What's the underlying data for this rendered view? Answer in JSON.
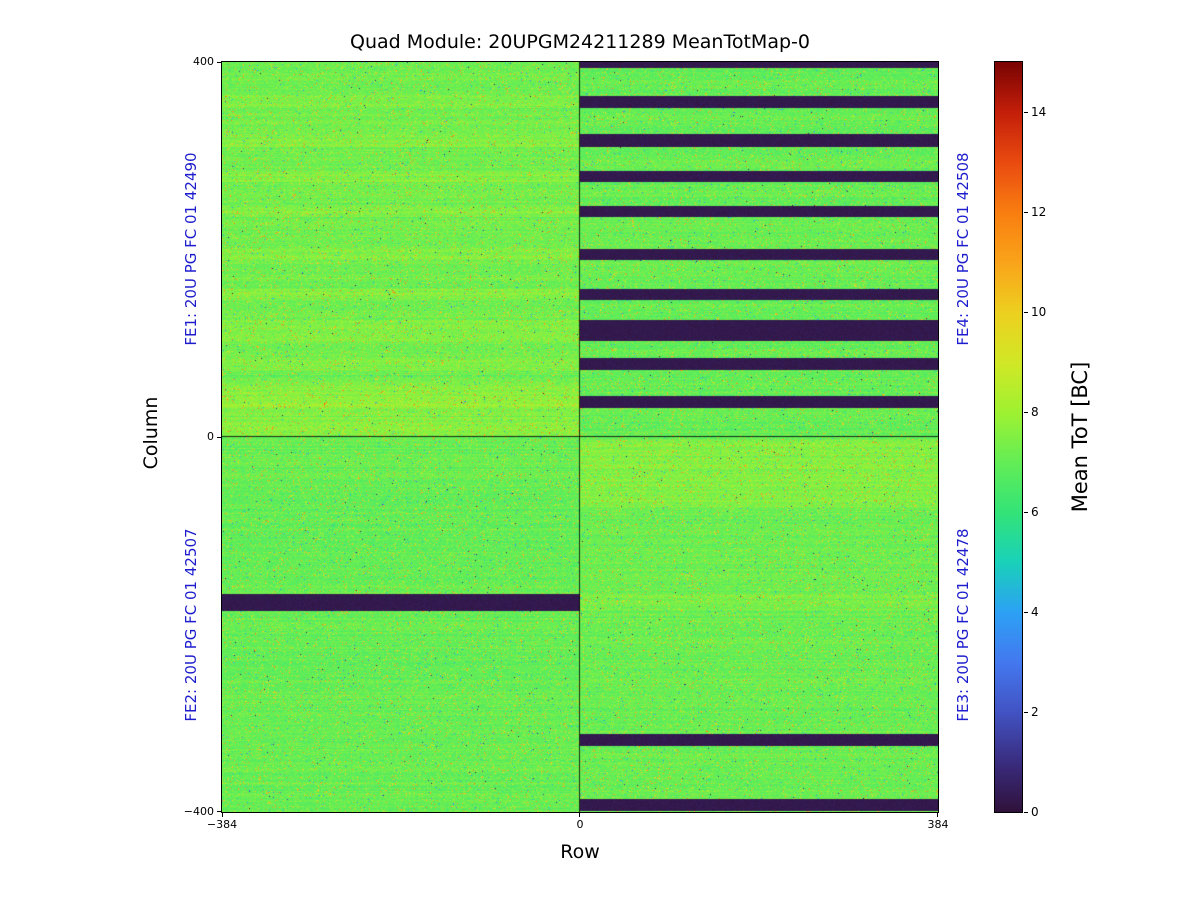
{
  "title": "Quad Module: 20UPGM24211289 MeanTotMap-0",
  "axes": {
    "xlabel": "Row",
    "ylabel": "Column",
    "x_ticks": [
      "−384",
      "0",
      "384"
    ],
    "y_ticks": [
      "400",
      "0",
      "−400"
    ]
  },
  "fe_labels": {
    "fe1": "FE1: 20U PG FC 01 42490",
    "fe2": "FE2: 20U PG FC 01 42507",
    "fe3": "FE3: 20U PG FC 01 42478",
    "fe4": "FE4: 20U PG FC 01 42508",
    "color": "#1d1dcd"
  },
  "colorbar": {
    "label": "Mean ToT [BC]",
    "ticks": [
      "14",
      "12",
      "10",
      "8",
      "6",
      "4",
      "2",
      "0"
    ]
  },
  "chart_data": {
    "type": "heatmap",
    "title": "Quad Module: 20UPGM24211289 MeanTotMap-0",
    "xlabel": "Row",
    "ylabel": "Column",
    "x_range": [
      -384,
      384
    ],
    "y_range": [
      -400,
      400
    ],
    "x_tick_values": [
      -384,
      0,
      384
    ],
    "y_tick_values": [
      400,
      0,
      -400
    ],
    "value_label": "Mean ToT [BC]",
    "value_range": [
      0,
      15
    ],
    "colorbar_tick_values": [
      0,
      2,
      4,
      6,
      8,
      10,
      12,
      14
    ],
    "colormap": "turbo",
    "colormap_anchors": [
      "#30123b",
      "#3a2d80",
      "#4254c4",
      "#4479f0",
      "#2da2f5",
      "#1ad2ba",
      "#34e478",
      "#64ee56",
      "#a0f232",
      "#d2e826",
      "#eed020",
      "#faa41a",
      "#f97e10",
      "#ea4b10",
      "#c41f0a",
      "#7a0403"
    ],
    "base_value": 7.0,
    "noise_sigma": 0.25,
    "quadrants": [
      {
        "name": "FE1",
        "label": "FE1: 20U PG FC 01 42490",
        "position": "top-left"
      },
      {
        "name": "FE2",
        "label": "FE2: 20U PG FC 01 42507",
        "position": "bottom-left"
      },
      {
        "name": "FE3",
        "label": "FE3: 20U PG FC 01 42478",
        "position": "bottom-right"
      },
      {
        "name": "FE4",
        "label": "FE4: 20U PG FC 01 42508",
        "position": "top-right"
      }
    ],
    "dead_stripes": [
      {
        "x_range": [
          0,
          384
        ],
        "col_range": [
          394,
          400
        ]
      },
      {
        "x_range": [
          0,
          384
        ],
        "col_range": [
          351,
          364
        ]
      },
      {
        "x_range": [
          0,
          384
        ],
        "col_range": [
          309,
          323
        ]
      },
      {
        "x_range": [
          0,
          384
        ],
        "col_range": [
          272,
          284
        ]
      },
      {
        "x_range": [
          0,
          384
        ],
        "col_range": [
          235,
          246
        ]
      },
      {
        "x_range": [
          0,
          384
        ],
        "col_range": [
          189,
          200
        ]
      },
      {
        "x_range": [
          0,
          384
        ],
        "col_range": [
          146,
          158
        ]
      },
      {
        "x_range": [
          0,
          384
        ],
        "col_range": [
          102,
          125
        ]
      },
      {
        "x_range": [
          0,
          384
        ],
        "col_range": [
          71,
          84
        ]
      },
      {
        "x_range": [
          0,
          384
        ],
        "col_range": [
          31,
          44
        ]
      },
      {
        "x_range": [
          -384,
          0
        ],
        "col_range": [
          -186,
          -167
        ]
      },
      {
        "x_range": [
          0,
          384
        ],
        "col_range": [
          -330,
          -317
        ]
      },
      {
        "x_range": [
          0,
          384
        ],
        "col_range": [
          -399,
          -386
        ]
      }
    ],
    "tint_bands": [
      {
        "x_range": [
          -384,
          0
        ],
        "col_range": [
          0,
          400
        ],
        "delta": 0.18
      },
      {
        "x_range": [
          -384,
          0
        ],
        "col_range": [
          0,
          58
        ],
        "delta": 0.35
      },
      {
        "x_range": [
          0,
          384
        ],
        "col_range": [
          -75,
          -2
        ],
        "delta": 0.42
      },
      {
        "x_range": [
          0,
          384
        ],
        "col_range": [
          -400,
          0
        ],
        "delta": 0.08
      },
      {
        "x_range": [
          0,
          384
        ],
        "col_range": [
          -186,
          -167
        ],
        "delta": 0.22
      },
      {
        "x_range": [
          -384,
          0
        ],
        "col_range": [
          351,
          364
        ],
        "delta": 0.3
      },
      {
        "x_range": [
          -384,
          0
        ],
        "col_range": [
          309,
          323
        ],
        "delta": 0.3
      },
      {
        "x_range": [
          -384,
          0
        ],
        "col_range": [
          272,
          284
        ],
        "delta": 0.3
      },
      {
        "x_range": [
          -384,
          0
        ],
        "col_range": [
          235,
          246
        ],
        "delta": 0.3
      },
      {
        "x_range": [
          -384,
          0
        ],
        "col_range": [
          189,
          200
        ],
        "delta": 0.3
      },
      {
        "x_range": [
          -384,
          0
        ],
        "col_range": [
          146,
          158
        ],
        "delta": 0.3
      },
      {
        "x_range": [
          -384,
          0
        ],
        "col_range": [
          102,
          125
        ],
        "delta": 0.3
      },
      {
        "x_range": [
          -384,
          0
        ],
        "col_range": [
          71,
          84
        ],
        "delta": 0.3
      },
      {
        "x_range": [
          -384,
          0
        ],
        "col_range": [
          31,
          44
        ],
        "delta": 0.3
      }
    ],
    "speckle": {
      "high_prob": 0.06,
      "high_min": 0.8,
      "high_span": 3.8,
      "low_prob": 0.01,
      "low_min": 1.2,
      "low_span": 2.8,
      "dark_prob": 0.0015
    }
  }
}
